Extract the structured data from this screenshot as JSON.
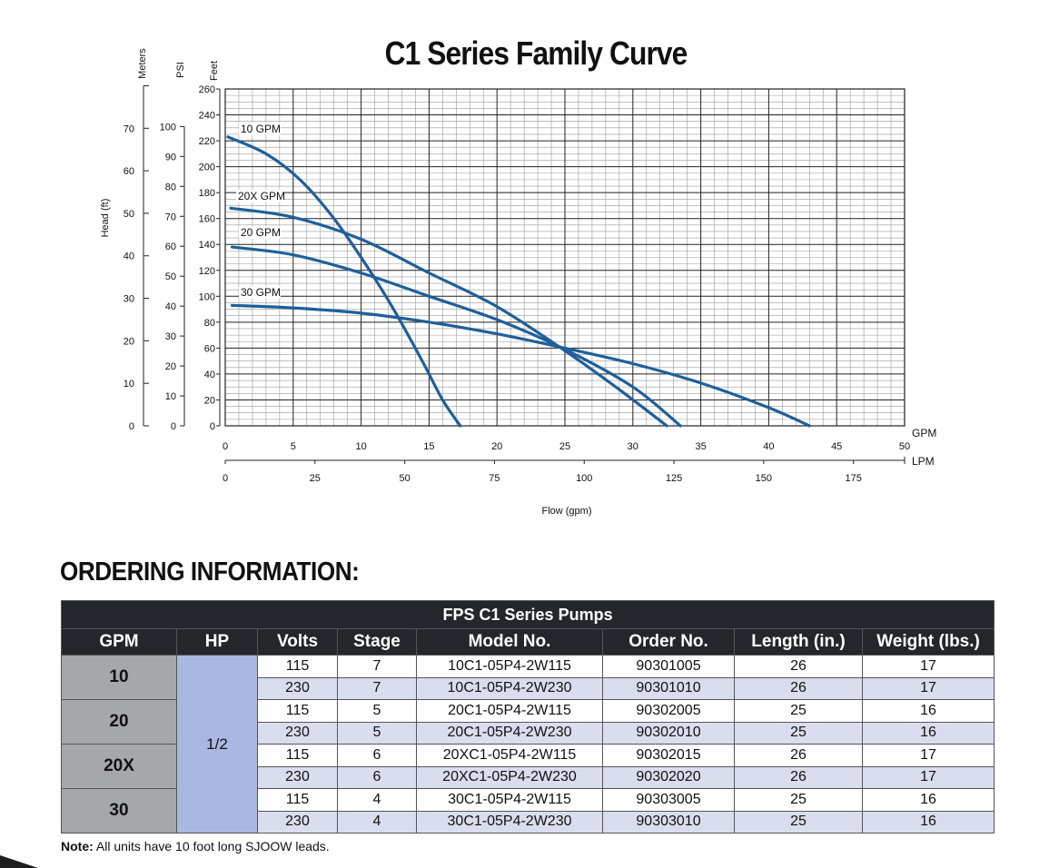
{
  "chart_data": {
    "type": "line",
    "title": "C1 Series Family Curve",
    "xlabel": "Flow (gpm)",
    "x_unit_primary": "GPM",
    "x_unit_secondary": "LPM",
    "x_ticks_gpm": [
      "0",
      "5",
      "10",
      "15",
      "20",
      "25",
      "30",
      "35",
      "40",
      "45",
      "50"
    ],
    "x_ticks_lpm": [
      "0",
      "25",
      "50",
      "75",
      "100",
      "125",
      "150",
      "175"
    ],
    "xlim": [
      0,
      50
    ],
    "ylim": [
      0,
      260
    ],
    "y_axis_feet_label": "Feet",
    "y_axis_psi_label": "PSI",
    "y_axis_meters_label": "Meters",
    "y_axis_title": "Head (ft)",
    "y_ticks_feet": [
      "0",
      "20",
      "40",
      "60",
      "80",
      "100",
      "120",
      "140",
      "160",
      "180",
      "200",
      "220",
      "240",
      "260"
    ],
    "y_ticks_psi": [
      "0",
      "10",
      "20",
      "30",
      "40",
      "50",
      "60",
      "70",
      "80",
      "90",
      "100"
    ],
    "y_ticks_meters": [
      "0",
      "10",
      "20",
      "30",
      "40",
      "50",
      "60",
      "70"
    ],
    "grid": true,
    "series": [
      {
        "name": "10 GPM",
        "x": [
          0.2,
          3,
          5.5,
          8,
          10.5,
          12.5,
          14.5,
          16,
          17.3
        ],
        "y": [
          223,
          210,
          190,
          160,
          122,
          88,
          50,
          20,
          0
        ]
      },
      {
        "name": "20X GPM",
        "x": [
          0.4,
          5,
          10,
          15,
          20,
          25,
          29,
          32.5
        ],
        "y": [
          168,
          161,
          144,
          118,
          92,
          58,
          28,
          0
        ]
      },
      {
        "name": "20 GPM",
        "x": [
          0.5,
          5,
          10,
          15,
          20,
          25,
          30,
          33.5
        ],
        "y": [
          138,
          132,
          118,
          100,
          82,
          59,
          30,
          0
        ]
      },
      {
        "name": "30 GPM",
        "x": [
          0.5,
          5,
          10,
          15,
          20,
          25,
          30,
          35,
          40,
          43
        ],
        "y": [
          93,
          91,
          87,
          80,
          71,
          60,
          48,
          33,
          14,
          0
        ]
      }
    ]
  },
  "ordering": {
    "heading": "ORDERING INFORMATION:",
    "table_caption": "FPS C1 Series Pumps",
    "columns": [
      "GPM",
      "HP",
      "Volts",
      "Stage",
      "Model No.",
      "Order No.",
      "Length (in.)",
      "Weight (lbs.)"
    ],
    "hp": "1/2",
    "groups": [
      {
        "gpm": "10",
        "rows": [
          {
            "volts": "115",
            "stage": "7",
            "model": "10C1-05P4-2W115",
            "order": "90301005",
            "length": "26",
            "weight": "17"
          },
          {
            "volts": "230",
            "stage": "7",
            "model": "10C1-05P4-2W230",
            "order": "90301010",
            "length": "26",
            "weight": "17"
          }
        ]
      },
      {
        "gpm": "20",
        "rows": [
          {
            "volts": "115",
            "stage": "5",
            "model": "20C1-05P4-2W115",
            "order": "90302005",
            "length": "25",
            "weight": "16"
          },
          {
            "volts": "230",
            "stage": "5",
            "model": "20C1-05P4-2W230",
            "order": "90302010",
            "length": "25",
            "weight": "16"
          }
        ]
      },
      {
        "gpm": "20X",
        "rows": [
          {
            "volts": "115",
            "stage": "6",
            "model": "20XC1-05P4-2W115",
            "order": "90302015",
            "length": "26",
            "weight": "17"
          },
          {
            "volts": "230",
            "stage": "6",
            "model": "20XC1-05P4-2W230",
            "order": "90302020",
            "length": "26",
            "weight": "17"
          }
        ]
      },
      {
        "gpm": "30",
        "rows": [
          {
            "volts": "115",
            "stage": "4",
            "model": "30C1-05P4-2W115",
            "order": "90303005",
            "length": "25",
            "weight": "16"
          },
          {
            "volts": "230",
            "stage": "4",
            "model": "30C1-05P4-2W230",
            "order": "90303010",
            "length": "25",
            "weight": "16"
          }
        ]
      }
    ],
    "note_label": "Note:",
    "note_text": " All units have 10 foot long SJOOW leads."
  },
  "colors": {
    "curve": "#1f5f9a",
    "header_bg": "#23272b",
    "gpm_cell": "#a6a7aa",
    "hp_cell": "#aab7e0",
    "alt_row": "#d9ddee"
  }
}
